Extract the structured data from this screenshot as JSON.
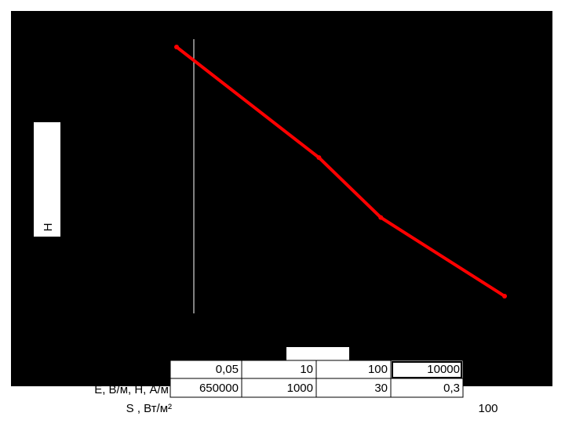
{
  "chart_data": {
    "type": "line",
    "y_label": "Н",
    "x": [
      0.05,
      10,
      100,
      10000
    ],
    "x_value_labels": [
      "0,05",
      "10",
      "100",
      "10000"
    ],
    "values": [
      650000,
      1000,
      30,
      0.3
    ],
    "value_labels": [
      "650000",
      "1000",
      "30",
      "0,3"
    ],
    "color": "#ff0000",
    "log_x": true,
    "log_y": true,
    "xlim": [
      0.05,
      10000
    ],
    "ylim": [
      0.3,
      650000
    ],
    "row_labels": [
      "E, В/м,  Н,  А/м",
      "S , Вт/м²"
    ],
    "annotation": "100"
  }
}
